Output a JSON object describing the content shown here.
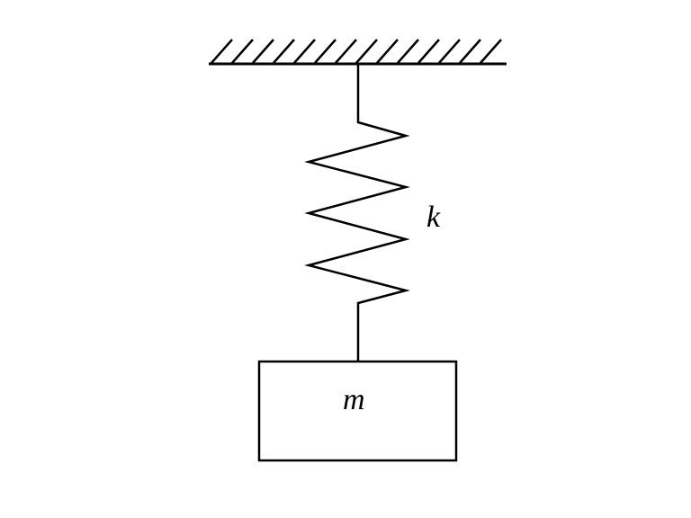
{
  "diagram": {
    "spring_label": "k",
    "mass_label": "m"
  },
  "colors": {
    "line": "#000000",
    "background": "#ffffff"
  }
}
